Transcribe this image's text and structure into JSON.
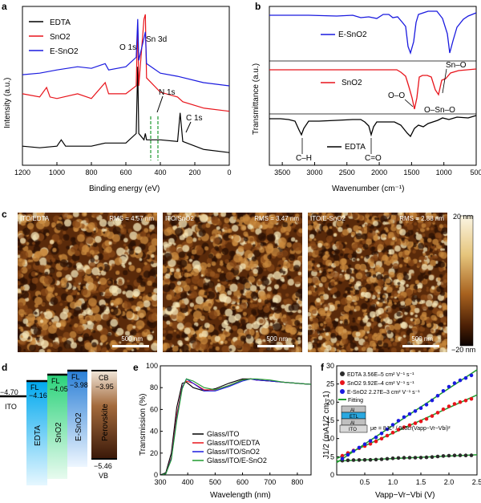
{
  "panels": {
    "a": "a",
    "b": "b",
    "c": "c",
    "d": "d",
    "e": "e",
    "f": "f"
  },
  "colors": {
    "black": "#000000",
    "red": "#e8141b",
    "blue": "#1a1adf",
    "green": "#1f9a2e",
    "afm_dark": "#3a1a06",
    "afm_light": "#f4e6b8"
  },
  "chart_data": [
    {
      "id": "a",
      "type": "line",
      "xlabel": "Binding energy (eV)",
      "ylabel": "Intensity (a.u.)",
      "xlim": [
        1200,
        0
      ],
      "xticks": [
        1200,
        1000,
        800,
        600,
        400,
        200,
        0
      ],
      "legend": [
        "EDTA",
        "SnO2",
        "E-SnO2"
      ],
      "annotations": [
        "O 1s",
        "Sn 3d",
        "N 1s",
        "C 1s"
      ],
      "series": [
        {
          "name": "EDTA",
          "color": "#000000",
          "x": [
            1200,
            1100,
            1000,
            975,
            950,
            800,
            720,
            600,
            540,
            531,
            525,
            495,
            487,
            480,
            400,
            300,
            285,
            270,
            150,
            0
          ],
          "y": [
            0.12,
            0.11,
            0.12,
            0.16,
            0.12,
            0.12,
            0.14,
            0.14,
            0.2,
            0.62,
            0.2,
            0.16,
            0.2,
            0.16,
            0.16,
            0.15,
            0.33,
            0.15,
            0.1,
            0.08
          ]
        },
        {
          "name": "SnO2",
          "color": "#e8141b",
          "x": [
            1200,
            1100,
            1060,
            1040,
            1000,
            880,
            800,
            720,
            700,
            600,
            540,
            531,
            525,
            495,
            487,
            480,
            400,
            300,
            270,
            150,
            0
          ],
          "y": [
            0.45,
            0.43,
            0.49,
            0.43,
            0.42,
            0.45,
            0.42,
            0.52,
            0.45,
            0.45,
            0.5,
            0.9,
            0.5,
            0.92,
            0.95,
            0.55,
            0.46,
            0.43,
            0.4,
            0.36,
            0.34
          ]
        },
        {
          "name": "E-SnO2",
          "color": "#1a1adf",
          "x": [
            1200,
            1100,
            1000,
            880,
            800,
            720,
            700,
            600,
            540,
            531,
            525,
            495,
            487,
            480,
            400,
            300,
            150,
            0
          ],
          "y": [
            0.57,
            0.58,
            0.6,
            0.62,
            0.61,
            0.64,
            0.6,
            0.62,
            0.68,
            0.92,
            0.66,
            0.8,
            0.84,
            0.64,
            0.58,
            0.56,
            0.52,
            0.5
          ]
        }
      ]
    },
    {
      "id": "b",
      "type": "line",
      "xlabel": "Wavenumber (cm⁻¹)",
      "ylabel": "Transmittance (a.u.)",
      "xlim": [
        3700,
        500
      ],
      "xticks": [
        3500,
        3000,
        2500,
        2000,
        1500,
        1000,
        500
      ],
      "legend": [
        "E-SnO2",
        "SnO2",
        "EDTA"
      ],
      "annotations": [
        "Sn–O",
        "O–O",
        "O–Sn–O",
        "C–H",
        "C=O"
      ]
    },
    {
      "id": "c",
      "type": "image",
      "images": [
        {
          "label": "ITO/EDTA",
          "rms": "RMS = 4.57 nm",
          "scale": "500 nm"
        },
        {
          "label": "ITO/SnO2",
          "rms": "RMS = 3.47 nm",
          "scale": "500 nm"
        },
        {
          "label": "ITO/E-SnO2",
          "rms": "RMS = 2.88 nm",
          "scale": "500 nm"
        }
      ],
      "colorbar": {
        "max": "20 nm",
        "min": "−20 nm"
      }
    },
    {
      "id": "d",
      "type": "diagram",
      "labels": {
        "ito": "ITO",
        "ito_val": "−4.70",
        "vb": "VB",
        "vb_val": "−5.46",
        "cb": "CB",
        "cb_val": "−3.95"
      },
      "layers": [
        {
          "name": "EDTA",
          "fl": "FL",
          "value": "−4.16"
        },
        {
          "name": "SnO2",
          "fl": "FL",
          "value": "−4.05"
        },
        {
          "name": "E-SnO2",
          "fl": "FL",
          "value": "−3.98"
        },
        {
          "name": "Perovskite",
          "fl": "",
          "value": ""
        }
      ]
    },
    {
      "id": "e",
      "type": "line",
      "xlabel": "Wavelength (nm)",
      "ylabel": "Transmission (%)",
      "xlim": [
        300,
        850
      ],
      "ylim": [
        0,
        100
      ],
      "xticks": [
        300,
        400,
        500,
        600,
        700,
        800
      ],
      "yticks": [
        0,
        20,
        40,
        60,
        80,
        100
      ],
      "legend": [
        "Glass/ITO",
        "Glass/ITO/EDTA",
        "Glass/ITO/SnO2",
        "Glass/ITO/E-SnO2"
      ],
      "series": [
        {
          "name": "Glass/ITO",
          "color": "#000000",
          "x": [
            300,
            320,
            340,
            360,
            380,
            395,
            420,
            460,
            500,
            550,
            600,
            630,
            650,
            700,
            750,
            800,
            850
          ],
          "y": [
            0,
            2,
            20,
            62,
            84,
            85,
            80,
            77,
            79,
            84,
            88,
            88,
            87,
            86,
            85,
            84,
            83
          ]
        },
        {
          "name": "Glass/ITO/EDTA",
          "color": "#e8141b",
          "x": [
            300,
            320,
            340,
            360,
            380,
            395,
            420,
            460,
            500,
            550,
            600,
            630,
            650,
            700,
            750,
            800,
            850
          ],
          "y": [
            0,
            1,
            16,
            55,
            81,
            86,
            84,
            78,
            78,
            82,
            87,
            88,
            87,
            86,
            85,
            84,
            83
          ]
        },
        {
          "name": "Glass/ITO/SnO2",
          "color": "#1a1adf",
          "x": [
            300,
            320,
            340,
            360,
            380,
            395,
            420,
            460,
            500,
            550,
            600,
            630,
            650,
            700,
            750,
            800,
            850
          ],
          "y": [
            0,
            1,
            15,
            52,
            80,
            88,
            84,
            77,
            77,
            81,
            86,
            88,
            87,
            86,
            85,
            84,
            83
          ]
        },
        {
          "name": "Glass/ITO/E-SnO2",
          "color": "#1f9a2e",
          "x": [
            300,
            320,
            340,
            360,
            380,
            395,
            420,
            460,
            500,
            550,
            600,
            630,
            650,
            700,
            750,
            800,
            850
          ],
          "y": [
            0,
            1,
            14,
            50,
            79,
            88,
            86,
            80,
            78,
            82,
            87,
            88,
            88,
            87,
            85,
            84,
            83
          ]
        }
      ]
    },
    {
      "id": "f",
      "type": "scatter",
      "xlabel": "Vapp−Vr−Vbi (V)",
      "ylabel": "J1/2 (mA1/2 cm−1)",
      "xlim": [
        0,
        2.5
      ],
      "ylim": [
        0,
        30
      ],
      "xticks": [
        0.5,
        1.0,
        1.5,
        2.0,
        2.5
      ],
      "yticks": [
        0,
        5,
        10,
        15,
        20,
        25,
        30
      ],
      "legend": [
        "EDTA 3.56E–5 cm² V⁻¹ s⁻¹",
        "SnO2 9.92E–4 cm² V⁻¹ s⁻¹",
        "E-SnO2 2.27E–3 cm² V⁻¹ s⁻¹",
        "Fitting"
      ],
      "inset_layers": [
        "Al",
        "ETL",
        "Al",
        "ITO"
      ],
      "formula": "μe = 8JL³ / 9ε0εr(Vapp−Vr−Vbi)²",
      "series": [
        {
          "name": "EDTA",
          "color": "#2a2a2a",
          "slope": 0.7,
          "intercept": 3.8
        },
        {
          "name": "SnO2",
          "color": "#e8141b",
          "slope": 7.0,
          "intercept": 4.5
        },
        {
          "name": "E-SnO2",
          "color": "#1a1adf",
          "slope": 10.2,
          "intercept": 3.4
        }
      ]
    }
  ]
}
